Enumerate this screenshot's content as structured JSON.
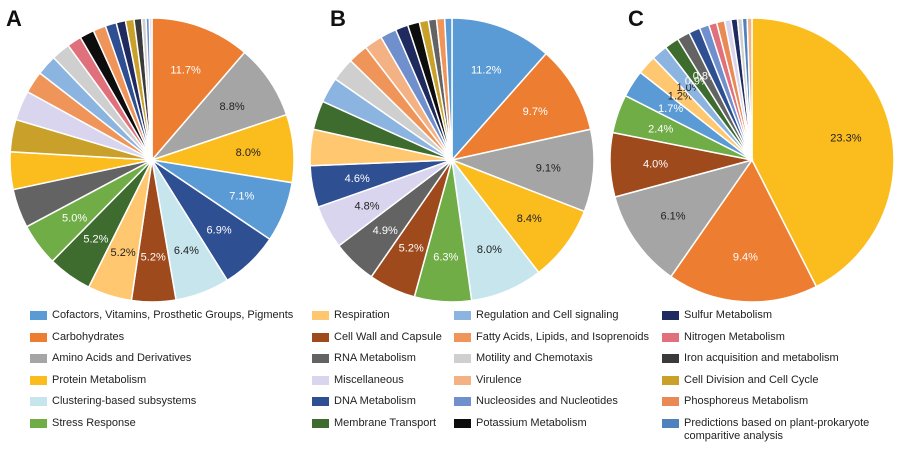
{
  "colors": {
    "cofactors": "#5b9bd5",
    "carbohydrates": "#ed7d31",
    "amino": "#a5a5a5",
    "protein": "#fbbc1e",
    "clustering": "#c6e5ec",
    "stress": "#70ad47",
    "respiration": "#ffc870",
    "cellwall": "#9e4a1c",
    "rna": "#636363",
    "misc": "#d9d5ee",
    "dna": "#2f4f93",
    "membrane": "#3e6b2e",
    "regulation": "#8cb4e0",
    "fatty": "#f0955a",
    "motility": "#cfcfcf",
    "virulence": "#f4b183",
    "nucleosides": "#6f90cc",
    "potassium": "#0d0d0d",
    "sulfur": "#1f2a5e",
    "nitrogen": "#e0707c",
    "iron": "#3a3a3a",
    "celldivision": "#c8a02a",
    "phosphorus": "#e98a55",
    "predictions": "#4f81bd"
  },
  "legend": [
    {
      "key": "cofactors",
      "label": "Cofactors, Vitamins, Prosthetic Groups, Pigments"
    },
    {
      "key": "carbohydrates",
      "label": "Carbohydrates"
    },
    {
      "key": "amino",
      "label": "Amino Acids and Derivatives"
    },
    {
      "key": "protein",
      "label": "Protein Metabolism"
    },
    {
      "key": "clustering",
      "label": "Clustering-based subsystems"
    },
    {
      "key": "stress",
      "label": "Stress Response"
    },
    {
      "key": "respiration",
      "label": "Respiration"
    },
    {
      "key": "cellwall",
      "label": "Cell Wall and Capsule"
    },
    {
      "key": "rna",
      "label": "RNA Metabolism"
    },
    {
      "key": "misc",
      "label": "Miscellaneous"
    },
    {
      "key": "dna",
      "label": "DNA Metabolism"
    },
    {
      "key": "membrane",
      "label": "Membrane Transport"
    },
    {
      "key": "regulation",
      "label": "Regulation and Cell signaling"
    },
    {
      "key": "fatty",
      "label": "Fatty Acids, Lipids, and Isoprenoids"
    },
    {
      "key": "motility",
      "label": "Motility and Chemotaxis"
    },
    {
      "key": "virulence",
      "label": "Virulence"
    },
    {
      "key": "nucleosides",
      "label": "Nucleosides and Nucleotides"
    },
    {
      "key": "potassium",
      "label": "Potassium Metabolism"
    },
    {
      "key": "sulfur",
      "label": "Sulfur Metabolism"
    },
    {
      "key": "nitrogen",
      "label": "Nitrogen Metabolism"
    },
    {
      "key": "iron",
      "label": "Iron acquisition and metabolism"
    },
    {
      "key": "celldivision",
      "label": "Cell Division and Cell Cycle"
    },
    {
      "key": "phosphorus",
      "label": "Phosphoreus Metabolism"
    },
    {
      "key": "predictions",
      "label": "Predictions based on plant-prokaryote comparitive analysis"
    }
  ],
  "chart_data": [
    {
      "type": "pie",
      "panel": "A",
      "slices": [
        {
          "key": "carbohydrates",
          "value": 11.7,
          "label": "11.7%"
        },
        {
          "key": "amino",
          "value": 8.8,
          "label": "8.8%"
        },
        {
          "key": "protein",
          "value": 8.0,
          "label": "8.0%"
        },
        {
          "key": "cofactors",
          "value": 7.1,
          "label": "7.1%"
        },
        {
          "key": "dna",
          "value": 6.9,
          "label": "6.9%"
        },
        {
          "key": "clustering",
          "value": 6.4,
          "label": "6.4%"
        },
        {
          "key": "cellwall",
          "value": 5.2,
          "label": "5.2%"
        },
        {
          "key": "respiration",
          "value": 5.2,
          "label": "5.2%"
        },
        {
          "key": "membrane",
          "value": 5.2,
          "label": "5.2%"
        },
        {
          "key": "stress",
          "value": 5.0,
          "label": "5.0%"
        },
        {
          "key": "rna",
          "value": 4.6,
          "label": ""
        },
        {
          "key": "protein",
          "value": 4.4,
          "label": ""
        },
        {
          "key": "celldivision",
          "value": 3.8,
          "label": ""
        },
        {
          "key": "misc",
          "value": 3.5,
          "label": ""
        },
        {
          "key": "fatty",
          "value": 2.6,
          "label": ""
        },
        {
          "key": "regulation",
          "value": 2.4,
          "label": ""
        },
        {
          "key": "motility",
          "value": 2.2,
          "label": ""
        },
        {
          "key": "nitrogen",
          "value": 1.7,
          "label": ""
        },
        {
          "key": "potassium",
          "value": 1.7,
          "label": ""
        },
        {
          "key": "fatty",
          "value": 1.5,
          "label": ""
        },
        {
          "key": "dna",
          "value": 1.3,
          "label": ""
        },
        {
          "key": "sulfur",
          "value": 1.1,
          "label": ""
        },
        {
          "key": "celldivision",
          "value": 1.0,
          "label": ""
        },
        {
          "key": "iron",
          "value": 0.9,
          "label": ""
        },
        {
          "key": "motility",
          "value": 0.5,
          "label": ""
        },
        {
          "key": "nucleosides",
          "value": 0.4,
          "label": ""
        },
        {
          "key": "misc",
          "value": 0.3,
          "label": ""
        }
      ]
    },
    {
      "type": "pie",
      "panel": "B",
      "slices": [
        {
          "key": "cofactors",
          "value": 11.2,
          "label": "11.2%"
        },
        {
          "key": "carbohydrates",
          "value": 9.7,
          "label": "9.7%"
        },
        {
          "key": "amino",
          "value": 9.1,
          "label": "9.1%"
        },
        {
          "key": "protein",
          "value": 8.4,
          "label": "8.4%"
        },
        {
          "key": "clustering",
          "value": 8.0,
          "label": "8.0%"
        },
        {
          "key": "stress",
          "value": 6.3,
          "label": "6.3%"
        },
        {
          "key": "cellwall",
          "value": 5.2,
          "label": "5.2%"
        },
        {
          "key": "rna",
          "value": 4.9,
          "label": "4.9%"
        },
        {
          "key": "misc",
          "value": 4.8,
          "label": "4.8%"
        },
        {
          "key": "dna",
          "value": 4.6,
          "label": "4.6%"
        },
        {
          "key": "respiration",
          "value": 4.0,
          "label": ""
        },
        {
          "key": "membrane",
          "value": 3.2,
          "label": ""
        },
        {
          "key": "regulation",
          "value": 2.8,
          "label": ""
        },
        {
          "key": "motility",
          "value": 2.6,
          "label": ""
        },
        {
          "key": "fatty",
          "value": 2.2,
          "label": ""
        },
        {
          "key": "virulence",
          "value": 2.0,
          "label": ""
        },
        {
          "key": "nucleosides",
          "value": 1.8,
          "label": ""
        },
        {
          "key": "sulfur",
          "value": 1.4,
          "label": ""
        },
        {
          "key": "potassium",
          "value": 1.3,
          "label": ""
        },
        {
          "key": "celldivision",
          "value": 1.0,
          "label": ""
        },
        {
          "key": "rna",
          "value": 0.9,
          "label": ""
        },
        {
          "key": "fatty",
          "value": 0.9,
          "label": ""
        },
        {
          "key": "cofactors",
          "value": 0.8,
          "label": ""
        }
      ]
    },
    {
      "type": "pie",
      "panel": "C",
      "slices": [
        {
          "key": "protein",
          "value": 23.3,
          "label": "23.3%"
        },
        {
          "key": "carbohydrates",
          "value": 9.4,
          "label": "9.4%"
        },
        {
          "key": "amino",
          "value": 6.1,
          "label": "6.1%"
        },
        {
          "key": "cellwall",
          "value": 4.0,
          "label": "4.0%"
        },
        {
          "key": "stress",
          "value": 2.4,
          "label": "2.4%"
        },
        {
          "key": "cofactors",
          "value": 1.7,
          "label": "1.7%"
        },
        {
          "key": "respiration",
          "value": 1.2,
          "label": "1.2%"
        },
        {
          "key": "regulation",
          "value": 1.0,
          "label": "1.0%"
        },
        {
          "key": "membrane",
          "value": 0.9,
          "label": "0.9%"
        },
        {
          "key": "rna",
          "value": 0.8,
          "label": "0.8%"
        },
        {
          "key": "dna",
          "value": 0.7,
          "label": ""
        },
        {
          "key": "nucleosides",
          "value": 0.6,
          "label": ""
        },
        {
          "key": "nitrogen",
          "value": 0.5,
          "label": ""
        },
        {
          "key": "phosphorus",
          "value": 0.5,
          "label": ""
        },
        {
          "key": "misc",
          "value": 0.4,
          "label": ""
        },
        {
          "key": "sulfur",
          "value": 0.4,
          "label": ""
        },
        {
          "key": "motility",
          "value": 0.3,
          "label": ""
        },
        {
          "key": "predictions",
          "value": 0.3,
          "label": ""
        },
        {
          "key": "virulence",
          "value": 0.3,
          "label": ""
        }
      ]
    }
  ]
}
